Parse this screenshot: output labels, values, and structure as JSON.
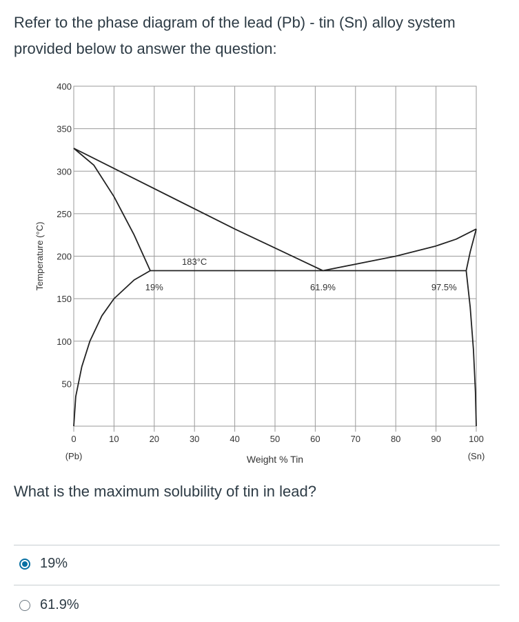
{
  "question": {
    "intro": "Refer to the phase diagram of the lead (Pb) - tin (Sn) alloy system provided below to answer the question:",
    "prompt": "What is the maximum solubility of tin in lead?"
  },
  "answers": [
    {
      "label": "19%",
      "selected": true
    },
    {
      "label": "61.9%",
      "selected": false
    }
  ],
  "colors": {
    "text": "#2d3b45",
    "radio_selected": "#0770a3",
    "grid": "#9a9a9a",
    "line": "#222222"
  },
  "chart_data": {
    "type": "line",
    "title": "",
    "xlabel": "Weight % Tin",
    "ylabel": "Temperature (°C)",
    "xlim": [
      0,
      100
    ],
    "ylim": [
      0,
      400
    ],
    "xticks": [
      0,
      10,
      20,
      30,
      40,
      50,
      60,
      70,
      80,
      90,
      100
    ],
    "yticks": [
      50,
      100,
      150,
      200,
      250,
      300,
      350,
      400
    ],
    "x_end_labels": {
      "left": "(Pb)",
      "right": "(Sn)"
    },
    "grid": true,
    "series": [
      {
        "x": [
          0,
          5,
          10,
          15,
          19
        ],
        "y": [
          327,
          307,
          270,
          225,
          183
        ]
      },
      {
        "x": [
          0,
          40,
          61.9
        ],
        "y": [
          327,
          232,
          183
        ]
      },
      {
        "x": [
          61.9,
          80,
          90,
          95,
          100
        ],
        "y": [
          183,
          200,
          212,
          220,
          232
        ]
      },
      {
        "x": [
          100,
          98.5,
          97.5
        ],
        "y": [
          232,
          205,
          183
        ]
      },
      {
        "x": [
          19,
          97.5
        ],
        "y": [
          183,
          183
        ]
      },
      {
        "x": [
          19,
          15,
          10,
          7,
          4,
          2,
          0.5,
          0
        ],
        "y": [
          183,
          172,
          150,
          130,
          100,
          70,
          35,
          0
        ]
      },
      {
        "x": [
          97.5,
          98.5,
          99.3,
          99.8,
          100
        ],
        "y": [
          183,
          140,
          90,
          40,
          0
        ]
      }
    ],
    "annotations": [
      {
        "text": "183°C",
        "x": 30,
        "y": 190
      },
      {
        "text": "19%",
        "x": 20,
        "y": 160
      },
      {
        "text": "61.9%",
        "x": 61.9,
        "y": 160
      },
      {
        "text": "97.5%",
        "x": 92,
        "y": 160
      }
    ]
  }
}
